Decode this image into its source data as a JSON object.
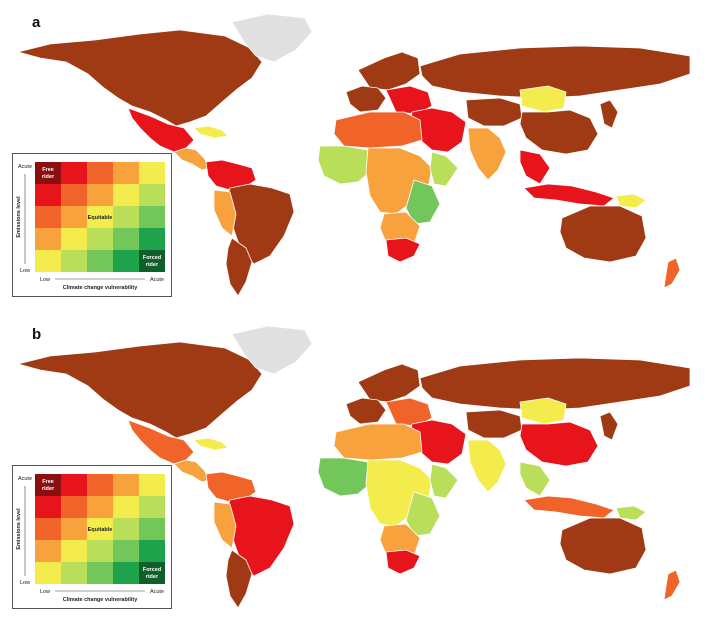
{
  "panels": [
    {
      "letter": "a"
    },
    {
      "letter": "b"
    }
  ],
  "legend": {
    "y_axis_label": "Emissions level",
    "x_axis_label": "Climate change vulnerability",
    "y_high": "Acute",
    "y_low": "Low",
    "x_low": "Low",
    "x_high": "Acute",
    "label_top_left_line1": "Free",
    "label_top_left_line2": "rider",
    "label_center": "Equitable",
    "label_bottom_right_line1": "Forced",
    "label_bottom_right_line2": "rider",
    "grid_colors": [
      [
        "#8b0f0f",
        "#e8141c",
        "#f0642a",
        "#f7a23c",
        "#f4ec4c"
      ],
      [
        "#e8141c",
        "#f0642a",
        "#f7a23c",
        "#f4ec4c",
        "#b9df5a"
      ],
      [
        "#f0642a",
        "#f7a23c",
        "#f4ec4c",
        "#b9df5a",
        "#73c75a"
      ],
      [
        "#f7a23c",
        "#f4ec4c",
        "#b9df5a",
        "#73c75a",
        "#1ea34c"
      ],
      [
        "#f4ec4c",
        "#b9df5a",
        "#73c75a",
        "#1ea34c",
        "#0f5f2a"
      ]
    ]
  },
  "colors": {
    "brown": "#a03a14",
    "greenland": "#e0e0e0",
    "red": "#e8141c",
    "orange_red": "#f0642a",
    "orange": "#f7a23c",
    "yellow": "#f4ec4c",
    "light_green": "#b9df5a",
    "green": "#73c75a",
    "dark_green": "#1ea34c"
  }
}
